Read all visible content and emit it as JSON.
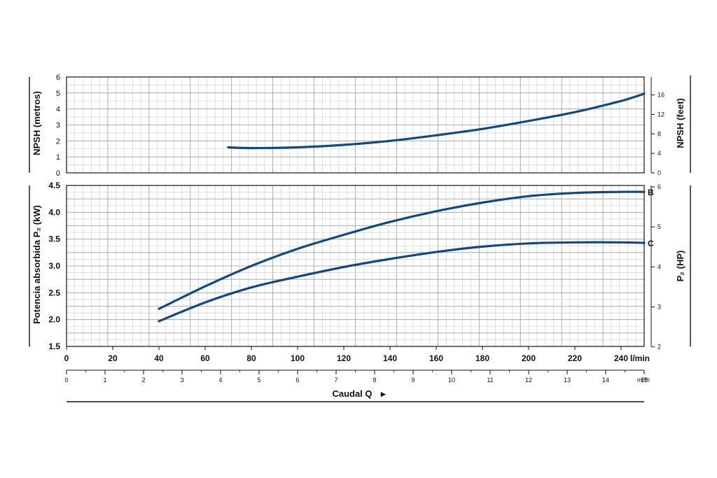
{
  "chart_data": [
    {
      "type": "line",
      "ylabel": "NPSH (metros)",
      "ylabel_right": "NPSH (feet)",
      "ylim": [
        0,
        6
      ],
      "yticks": [
        "0",
        "1",
        "2",
        "3",
        "4",
        "5",
        "6"
      ],
      "yticks_right": [
        "0",
        "4",
        "8",
        "12",
        "16"
      ],
      "grid": true,
      "series": [
        {
          "name": "",
          "x": [
            70,
            80,
            100,
            120,
            140,
            160,
            180,
            200,
            220,
            240,
            250
          ],
          "y": [
            1.6,
            1.55,
            1.6,
            1.75,
            2.0,
            2.35,
            2.75,
            3.25,
            3.8,
            4.5,
            4.95
          ]
        }
      ]
    },
    {
      "type": "line",
      "ylabel": "Potencia absorbida P₂ (kW)",
      "ylabel_right": "P₂ (HP)",
      "ylim": [
        1.5,
        4.5
      ],
      "yticks": [
        "1.5",
        "2.0",
        "2.5",
        "3.0",
        "3.5",
        "4.0",
        "4.5"
      ],
      "yticks_right": [
        "2",
        "3",
        "4",
        "5",
        "6"
      ],
      "grid": true,
      "series": [
        {
          "name": "B",
          "x": [
            40,
            60,
            80,
            100,
            120,
            140,
            160,
            180,
            200,
            220,
            240,
            250
          ],
          "y": [
            2.2,
            2.62,
            3.0,
            3.32,
            3.58,
            3.82,
            4.02,
            4.18,
            4.3,
            4.36,
            4.38,
            4.38
          ]
        },
        {
          "name": "C",
          "x": [
            40,
            60,
            80,
            100,
            120,
            140,
            160,
            180,
            200,
            220,
            240,
            250
          ],
          "y": [
            1.97,
            2.32,
            2.6,
            2.8,
            2.98,
            3.13,
            3.26,
            3.36,
            3.42,
            3.44,
            3.44,
            3.43
          ]
        }
      ]
    }
  ],
  "x_axis": {
    "ticks_lmin": [
      "0",
      "20",
      "40",
      "60",
      "80",
      "100",
      "120",
      "140",
      "160",
      "180",
      "200",
      "220",
      "240"
    ],
    "unit_lmin": "l/min",
    "ticks_m3h": [
      "0",
      "1",
      "2",
      "3",
      "4",
      "5",
      "6",
      "7",
      "8",
      "9",
      "10",
      "11",
      "12",
      "13",
      "14",
      "15"
    ],
    "unit_m3h": "m³/h",
    "xlim": [
      0,
      250
    ],
    "title": "Caudal Q",
    "arrow": "▸"
  },
  "colors": {
    "curve": "#14487c",
    "text": "#111111"
  }
}
